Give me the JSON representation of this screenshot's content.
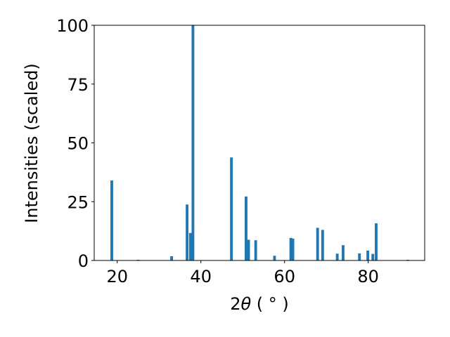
{
  "chart_data": {
    "type": "bar",
    "xlabel_parts": {
      "prefix": "2",
      "symbol": "θ",
      "unit": " ( ° )"
    },
    "ylabel": "Intensities (scaled)",
    "xlim": [
      14.5,
      93.5
    ],
    "ylim": [
      0,
      100
    ],
    "xticks": [
      20,
      40,
      60,
      80
    ],
    "yticks": [
      0,
      25,
      50,
      75,
      100
    ],
    "grid": false,
    "legend": "none",
    "bar_width_deg": 0.65,
    "color": "#1f77b4",
    "series": [
      {
        "values": [
          {
            "x": 18.7,
            "y": 34.0
          },
          {
            "x": 25.0,
            "y": 0.3
          },
          {
            "x": 33.0,
            "y": 1.8
          },
          {
            "x": 36.7,
            "y": 23.8
          },
          {
            "x": 37.5,
            "y": 11.7
          },
          {
            "x": 38.1,
            "y": 100.0
          },
          {
            "x": 47.3,
            "y": 43.8
          },
          {
            "x": 50.8,
            "y": 27.2
          },
          {
            "x": 51.4,
            "y": 8.8
          },
          {
            "x": 53.1,
            "y": 8.6
          },
          {
            "x": 57.6,
            "y": 2.0
          },
          {
            "x": 61.5,
            "y": 9.6
          },
          {
            "x": 62.0,
            "y": 9.3
          },
          {
            "x": 67.9,
            "y": 13.9
          },
          {
            "x": 69.1,
            "y": 13.0
          },
          {
            "x": 72.6,
            "y": 2.9
          },
          {
            "x": 74.0,
            "y": 6.5
          },
          {
            "x": 77.9,
            "y": 3.0
          },
          {
            "x": 79.9,
            "y": 4.2
          },
          {
            "x": 81.1,
            "y": 2.8
          },
          {
            "x": 81.9,
            "y": 15.8
          },
          {
            "x": 89.5,
            "y": 0.3
          }
        ]
      }
    ]
  }
}
